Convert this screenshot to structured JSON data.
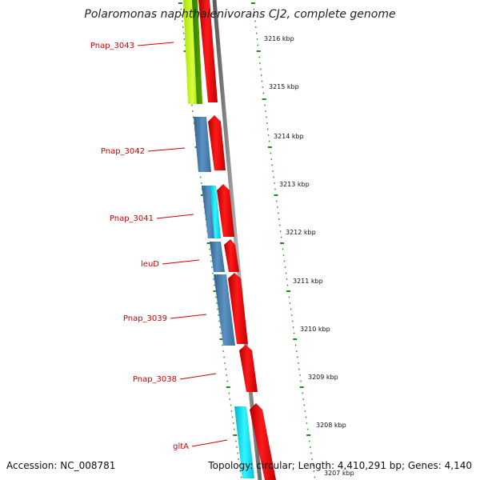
{
  "title": "Polaromonas naphthalenivorans CJ2, complete genome",
  "accession": "Accession: NC_008781",
  "summary": "Topology: circular; Length: 4,410,291 bp; Genes: 4,140",
  "colors": {
    "forward_cds": "#ff0000",
    "reverse_cds": "#4682b4",
    "reverse_cds_alt": "#00e5ee",
    "highlight_cds": "#7fd400",
    "backbone": "#808080",
    "tick": "#1a8c1a",
    "label_line": "#cc0000"
  },
  "gene_labels": [
    "Pnap_3043",
    "Pnap_3042",
    "Pnap_3041",
    "leuD",
    "Pnap_3039",
    "Pnap_3038",
    "gltA"
  ],
  "kbp_ticks": [
    "3216 kbp",
    "3215 kbp",
    "3214 kbp",
    "3213 kbp",
    "3212 kbp",
    "3211 kbp",
    "3210 kbp",
    "3209 kbp",
    "3208 kbp",
    "3207 kbp"
  ]
}
